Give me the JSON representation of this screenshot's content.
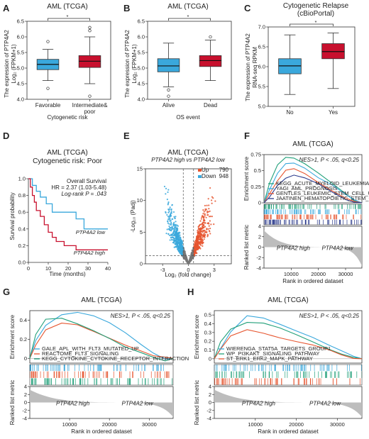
{
  "colors": {
    "blue": "#3aa8dc",
    "red": "#c8102e",
    "green": "#22a07a",
    "darkblue": "#2b3a8c",
    "orange": "#e6552f",
    "gray": "#777777"
  },
  "panels": {
    "A": {
      "label": "A",
      "title": "AML (TCGA)",
      "ylabel1": "The expression of PTP4A2",
      "ylabel2": "Log₂ (FPKM+1)",
      "xlabel": "Cytogenetic risk",
      "sig": "*"
    },
    "B": {
      "label": "B",
      "title": "AML (TCGA)",
      "ylabel1": "The expression of PTP4A2",
      "ylabel2": "Log₂ (FPKM+1)",
      "xlabel": "OS event",
      "sig": "*"
    },
    "C": {
      "label": "C",
      "title1": "Cytogenetic Relapse",
      "title2": "(cBioPortal)",
      "ylabel1": "The expression of PTP4A2",
      "ylabel2": "RNA-seq RPKM",
      "sig": "*"
    },
    "D": {
      "label": "D",
      "title1": "AML (TCGA)",
      "title2": "Cytogenetic risk: Poor",
      "stat1": "Overall Survival",
      "stat2": "HR = 2.37 (1.03-5.48)",
      "stat3": "Log-rank P = .043",
      "ylabel": "Survival probability",
      "xlabel": "Time (months)",
      "low_label": "PTP4A2 low",
      "high_label": "PTP4A2 high"
    },
    "E": {
      "label": "E",
      "title": "AML (TCGA)",
      "subtitle": "PTP4A2 high vs PTP4A2 low",
      "up_label": "Up",
      "up_count": "790",
      "down_label": "Down",
      "down_count": "948",
      "ylabel": "-Log₁₀ (Padj)",
      "xlabel": "Log₂ (fold change)"
    },
    "F": {
      "label": "F",
      "title": "AML (TCGA)",
      "nes": "NES>1, P < .05, q<0.25",
      "ylabel_top": "Enrichment score",
      "ylabel_bot": "Ranked list metric",
      "xlabel": "Rank in ordered dataset",
      "high_label": "PTP4A2 high",
      "low_label": "PTP4A2 low",
      "legend": [
        "KEGG_ACUTE_MYELOID_LEUKEMIA",
        "YAGI_AML_PROGNOSIS",
        "GENTLES_LEUKEMIC_STEM_CELL_UP",
        "JAATINEN_HEMATOPOIETIC_STEM_CELL_UP"
      ]
    },
    "G": {
      "label": "G",
      "title": "AML (TCGA)",
      "nes": "NES>1, P < .05, q<0.25",
      "ylabel_top": "Enrichment score",
      "ylabel_bot": "Ranked list metric",
      "xlabel": "Rank in ordered dataset",
      "high_label": "PTP4A2 high",
      "low_label": "PTP4A2 low",
      "legend": [
        "GALE_APL_WITH_FLT3_MUTATED_UP",
        "REACTOME_FLT3_SIGNALING",
        "KEGG_CYTOKINE_CYTOKINE_RECEPTOR_INTERACTION"
      ]
    },
    "H": {
      "label": "H",
      "title": "AML (TCGA)",
      "nes": "NES>1, P < .05, q<0.25",
      "ylabel_top": "Enrichment score",
      "ylabel_bot": "Ranked list metric",
      "xlabel": "Rank in ordered dataset",
      "high_label": "PTP4A2 high",
      "low_label": "PTP4A2 low",
      "legend": [
        "WIERENGA_STAT5A_TARGETS_GROUP1",
        "WP_PI3KAKT_SIGNALING_PATHWAY",
        "ST_ERK1_ERK2_MAPK_PATHWAY"
      ]
    }
  },
  "chart_data": [
    {
      "panel": "A",
      "type": "box",
      "categories": [
        "Favorable",
        "Intermediate&\npoor"
      ],
      "ylim": [
        4.0,
        6.5
      ],
      "yticks": [
        4.0,
        4.5,
        5.0,
        5.5,
        6.0,
        6.5
      ],
      "boxes": [
        {
          "q1": 4.95,
          "median": 5.12,
          "q3": 5.28,
          "low": 4.6,
          "high": 5.6,
          "outliers": [
            5.85,
            4.35
          ],
          "color": "#3aa8dc"
        },
        {
          "q1": 5.02,
          "median": 5.22,
          "q3": 5.4,
          "low": 4.5,
          "high": 6.0,
          "outliers": [
            6.2,
            6.3,
            4.1
          ],
          "color": "#c8102e"
        }
      ]
    },
    {
      "panel": "B",
      "type": "box",
      "categories": [
        "Alive",
        "Dead"
      ],
      "ylim": [
        4.0,
        6.5
      ],
      "yticks": [
        4.0,
        4.5,
        5.0,
        5.5,
        6.0,
        6.5
      ],
      "boxes": [
        {
          "q1": 4.88,
          "median": 5.07,
          "q3": 5.3,
          "low": 4.4,
          "high": 5.8,
          "outliers": [
            4.3,
            4.1
          ],
          "color": "#3aa8dc"
        },
        {
          "q1": 5.05,
          "median": 5.24,
          "q3": 5.4,
          "low": 4.6,
          "high": 5.9,
          "outliers": [
            6.0
          ],
          "color": "#c8102e"
        }
      ]
    },
    {
      "panel": "C",
      "type": "box",
      "categories": [
        "No",
        "Yes"
      ],
      "ylim": [
        5.0,
        7.0
      ],
      "yticks": [
        5.0,
        5.5,
        6.0,
        6.5,
        7.0
      ],
      "boxes": [
        {
          "q1": 5.82,
          "median": 6.02,
          "q3": 6.2,
          "low": 5.3,
          "high": 6.8,
          "outliers": [],
          "color": "#3aa8dc"
        },
        {
          "q1": 6.2,
          "median": 6.38,
          "q3": 6.58,
          "low": 5.45,
          "high": 6.85,
          "outliers": [],
          "color": "#c8102e"
        }
      ]
    },
    {
      "panel": "D",
      "type": "line",
      "xlim": [
        0,
        40
      ],
      "ylim": [
        0,
        1
      ],
      "xticks": [
        0,
        10,
        20,
        30,
        40
      ],
      "yticks": [
        0,
        0.2,
        0.4,
        0.6,
        0.8,
        1.0
      ],
      "series": [
        {
          "name": "PTP4A2 low",
          "color": "#3aa8dc",
          "x": [
            0,
            2,
            4,
            6,
            9,
            12,
            16,
            21,
            24,
            28,
            38,
            40
          ],
          "y": [
            1.0,
            0.92,
            0.85,
            0.78,
            0.7,
            0.6,
            0.6,
            0.6,
            0.52,
            0.4,
            0.4,
            0.4
          ]
        },
        {
          "name": "PTP4A2 high",
          "color": "#c8102e",
          "x": [
            0,
            1,
            2,
            3,
            4,
            6,
            8,
            10,
            12,
            14,
            18,
            24,
            40
          ],
          "y": [
            1.0,
            0.9,
            0.8,
            0.72,
            0.62,
            0.55,
            0.45,
            0.36,
            0.3,
            0.25,
            0.2,
            0.15,
            0.15
          ]
        }
      ]
    },
    {
      "panel": "E",
      "type": "scatter",
      "xlim": [
        -5,
        5
      ],
      "ylim": [
        0,
        15
      ],
      "xticks": [
        -3,
        0,
        3
      ],
      "yticks": [
        0,
        5,
        10,
        15
      ]
    },
    {
      "panel": "F",
      "type": "line",
      "xlim": [
        0,
        36000
      ],
      "ylim": [
        0,
        0.75
      ],
      "yticks": [
        0,
        0.25,
        0.5,
        0.75
      ],
      "xticks": [
        10000,
        20000,
        30000
      ],
      "ylim_bottom": [
        -4,
        4
      ],
      "yticks_bottom": [
        -4,
        -2,
        0,
        2,
        4
      ],
      "series": [
        {
          "name": "KEGG_ACUTE_MYELOID_LEUKEMIA",
          "color": "#22a07a",
          "x": [
            0,
            2000,
            5000,
            8000,
            11000,
            15000,
            20000,
            25000,
            30000,
            33000,
            36000
          ],
          "y": [
            0,
            0.3,
            0.6,
            0.72,
            0.7,
            0.6,
            0.45,
            0.3,
            0.15,
            0.05,
            0
          ]
        },
        {
          "name": "YAGI_AML_PROGNOSIS",
          "color": "#3aa8dc",
          "x": [
            0,
            2000,
            5000,
            8000,
            11000,
            15000,
            20000,
            25000,
            30000,
            33000,
            36000
          ],
          "y": [
            0,
            0.2,
            0.45,
            0.6,
            0.62,
            0.55,
            0.4,
            0.28,
            0.12,
            0.04,
            0
          ]
        },
        {
          "name": "GENTLES_LEUKEMIC_STEM_CELL_UP",
          "color": "#e6552f",
          "x": [
            0,
            2000,
            5000,
            8000,
            11000,
            15000,
            20000,
            25000,
            30000,
            33000,
            36000
          ],
          "y": [
            0,
            0.15,
            0.35,
            0.5,
            0.52,
            0.45,
            0.32,
            0.2,
            0.08,
            0.02,
            0
          ]
        },
        {
          "name": "JAATINEN_HEMATOPOIETIC_STEM_CELL_UP",
          "color": "#2b3a8c",
          "x": [
            0,
            2000,
            5000,
            8000,
            11000,
            15000,
            20000,
            25000,
            30000,
            33000,
            36000
          ],
          "y": [
            0,
            0.1,
            0.28,
            0.38,
            0.42,
            0.38,
            0.3,
            0.18,
            0.06,
            0.01,
            0
          ]
        }
      ]
    },
    {
      "panel": "G",
      "type": "line",
      "xlim": [
        0,
        36000
      ],
      "ylim": [
        -0.05,
        0.5
      ],
      "yticks": [
        0,
        0.2,
        0.4
      ],
      "xticks": [
        10000,
        20000,
        30000
      ],
      "ylim_bottom": [
        -4,
        4
      ],
      "yticks_bottom": [
        -4,
        -2,
        0,
        2,
        4
      ],
      "series": [
        {
          "name": "GALE_APL_WITH_FLT3_MUTATED_UP",
          "color": "#3aa8dc",
          "x": [
            0,
            1500,
            4000,
            8000,
            12000,
            16000,
            20000,
            24000,
            28000,
            31000,
            34000,
            36000
          ],
          "y": [
            0,
            0.2,
            0.35,
            0.45,
            0.47,
            0.44,
            0.38,
            0.28,
            0.15,
            0.05,
            -0.02,
            0
          ]
        },
        {
          "name": "REACTOME_FLT3_SIGNALING",
          "color": "#e6552f",
          "x": [
            0,
            1500,
            4000,
            8000,
            12000,
            16000,
            20000,
            24000,
            28000,
            31000,
            34000,
            36000
          ],
          "y": [
            0,
            0.15,
            0.3,
            0.36,
            0.34,
            0.28,
            0.22,
            0.15,
            0.08,
            0.02,
            0,
            0
          ]
        },
        {
          "name": "KEGG_CYTOKINE_CYTOKINE_RECEPTOR_INTERACTION",
          "color": "#22a07a",
          "x": [
            0,
            1500,
            4000,
            8000,
            12000,
            16000,
            20000,
            24000,
            28000,
            31000,
            34000,
            36000
          ],
          "y": [
            0,
            0.25,
            0.4,
            0.41,
            0.36,
            0.3,
            0.22,
            0.12,
            0.05,
            0.0,
            -0.03,
            0
          ]
        }
      ]
    },
    {
      "panel": "H",
      "type": "line",
      "xlim": [
        0,
        36000
      ],
      "ylim": [
        -0.05,
        0.55
      ],
      "yticks": [
        0,
        0.1,
        0.2,
        0.3,
        0.4,
        0.5
      ],
      "xticks": [
        10000,
        20000,
        30000
      ],
      "ylim_bottom": [
        -4,
        4
      ],
      "yticks_bottom": [
        -4,
        -2,
        0,
        2,
        4
      ],
      "series": [
        {
          "name": "WIERENGA_STAT5A_TARGETS_GROUP1",
          "color": "#3aa8dc",
          "x": [
            0,
            1500,
            4000,
            8000,
            12000,
            16000,
            20000,
            24000,
            28000,
            31000,
            34000,
            36000
          ],
          "y": [
            0,
            0.12,
            0.3,
            0.48,
            0.46,
            0.4,
            0.33,
            0.25,
            0.15,
            0.08,
            0.02,
            0
          ]
        },
        {
          "name": "WP_PI3KAKT_SIGNALING_PATHWAY",
          "color": "#22a07a",
          "x": [
            0,
            1500,
            4000,
            8000,
            12000,
            16000,
            20000,
            24000,
            28000,
            31000,
            34000,
            36000
          ],
          "y": [
            0,
            0.2,
            0.35,
            0.42,
            0.4,
            0.34,
            0.27,
            0.2,
            0.12,
            0.06,
            0.01,
            0
          ]
        },
        {
          "name": "ST_ERK1_ERK2_MAPK_PATHWAY",
          "color": "#e6552f",
          "x": [
            0,
            1500,
            4000,
            8000,
            12000,
            16000,
            20000,
            24000,
            28000,
            31000,
            34000,
            36000
          ],
          "y": [
            0,
            0.1,
            0.25,
            0.33,
            0.3,
            0.25,
            0.2,
            0.15,
            0.09,
            0.04,
            0.01,
            0
          ]
        }
      ]
    }
  ]
}
